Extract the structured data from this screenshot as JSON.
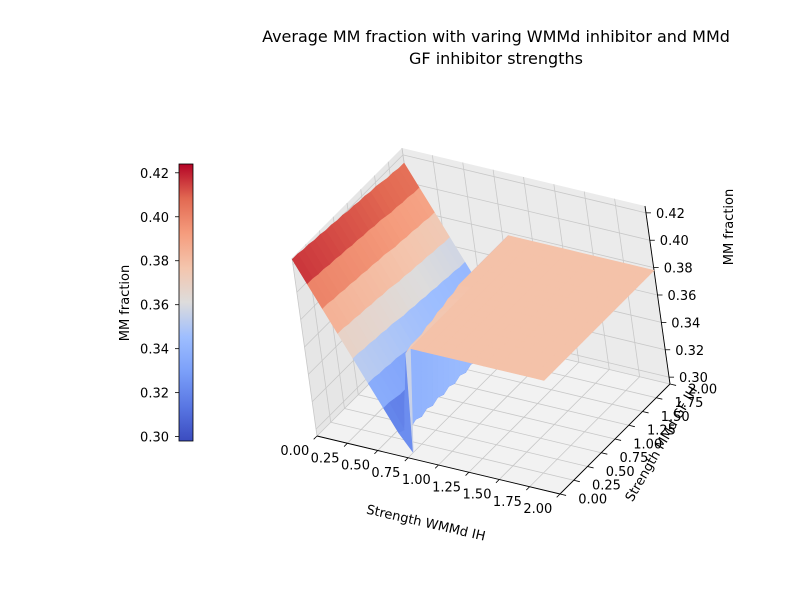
{
  "chart_data": {
    "type": "surface3d",
    "title_line1": "Average MM fraction with varing WMMd inhibitor and MMd",
    "title_line2": "GF inhibitor strengths",
    "xlabel": "Strength WMMd IH",
    "ylabel": "Strength MMd GF IH",
    "zlabel": "MM fraction",
    "colorbar_label": "MM fraction",
    "colormap": "coolwarm",
    "x_ticks": [
      "0.00",
      "0.25",
      "0.50",
      "0.75",
      "1.00",
      "1.25",
      "1.50",
      "1.75",
      "2.00"
    ],
    "y_ticks": [
      "0.00",
      "0.25",
      "0.50",
      "0.75",
      "1.00",
      "1.25",
      "1.50",
      "1.75",
      "2.00"
    ],
    "z_ticks": [
      "0.30",
      "0.32",
      "0.34",
      "0.36",
      "0.38",
      "0.40",
      "0.42"
    ],
    "colorbar_ticks": [
      "0.30",
      "0.32",
      "0.34",
      "0.36",
      "0.38",
      "0.40",
      "0.42"
    ],
    "xlim": [
      0,
      2
    ],
    "ylim": [
      0,
      2
    ],
    "zlim": [
      0.295,
      0.425
    ],
    "colorbar_range": [
      0.298,
      0.424
    ],
    "grid": true,
    "surface": {
      "x": [
        0.0,
        0.1,
        0.2,
        0.3,
        0.4,
        0.5,
        0.6,
        0.7,
        0.8,
        0.9,
        1.0,
        1.1,
        1.2,
        1.3,
        1.4,
        1.5,
        1.6,
        1.7,
        1.8,
        1.9,
        2.0
      ],
      "y": [
        0.0,
        0.1,
        0.2,
        0.3,
        0.4,
        0.5,
        0.6,
        0.7,
        0.8,
        0.9,
        1.0,
        1.1,
        1.2,
        1.3,
        1.4,
        1.5,
        1.6,
        1.7,
        1.8,
        1.9,
        2.0
      ],
      "z": [
        [
          0.424,
          0.408,
          0.392,
          0.376,
          0.36,
          0.344,
          0.328,
          0.312,
          0.3,
          0.378,
          0.378,
          0.378,
          0.378,
          0.378,
          0.378,
          0.378,
          0.378,
          0.378,
          0.378,
          0.378,
          0.378
        ],
        [
          0.424,
          0.408,
          0.392,
          0.376,
          0.36,
          0.344,
          0.328,
          0.31,
          0.368,
          0.378,
          0.378,
          0.378,
          0.378,
          0.378,
          0.378,
          0.378,
          0.378,
          0.378,
          0.378,
          0.378,
          0.378
        ],
        [
          0.423,
          0.407,
          0.391,
          0.375,
          0.359,
          0.343,
          0.327,
          0.308,
          0.37,
          0.378,
          0.378,
          0.378,
          0.378,
          0.378,
          0.378,
          0.378,
          0.378,
          0.378,
          0.378,
          0.378,
          0.378
        ],
        [
          0.423,
          0.407,
          0.391,
          0.375,
          0.359,
          0.343,
          0.326,
          0.31,
          0.37,
          0.378,
          0.378,
          0.378,
          0.378,
          0.378,
          0.378,
          0.378,
          0.378,
          0.378,
          0.378,
          0.378,
          0.378
        ],
        [
          0.422,
          0.406,
          0.39,
          0.374,
          0.358,
          0.342,
          0.326,
          0.308,
          0.37,
          0.378,
          0.378,
          0.378,
          0.378,
          0.378,
          0.378,
          0.378,
          0.378,
          0.378,
          0.378,
          0.378,
          0.378
        ],
        [
          0.422,
          0.406,
          0.39,
          0.374,
          0.358,
          0.342,
          0.325,
          0.31,
          0.372,
          0.378,
          0.378,
          0.378,
          0.378,
          0.378,
          0.378,
          0.378,
          0.378,
          0.378,
          0.378,
          0.378,
          0.378
        ],
        [
          0.421,
          0.405,
          0.389,
          0.373,
          0.357,
          0.341,
          0.325,
          0.308,
          0.372,
          0.378,
          0.378,
          0.378,
          0.378,
          0.378,
          0.378,
          0.378,
          0.378,
          0.378,
          0.378,
          0.378,
          0.378
        ],
        [
          0.421,
          0.405,
          0.389,
          0.373,
          0.357,
          0.34,
          0.324,
          0.31,
          0.374,
          0.378,
          0.378,
          0.378,
          0.378,
          0.378,
          0.378,
          0.378,
          0.378,
          0.378,
          0.378,
          0.378,
          0.378
        ],
        [
          0.42,
          0.404,
          0.388,
          0.372,
          0.356,
          0.34,
          0.324,
          0.308,
          0.374,
          0.378,
          0.378,
          0.378,
          0.378,
          0.378,
          0.378,
          0.378,
          0.378,
          0.378,
          0.378,
          0.378,
          0.378
        ],
        [
          0.42,
          0.404,
          0.388,
          0.372,
          0.355,
          0.339,
          0.323,
          0.31,
          0.376,
          0.378,
          0.378,
          0.378,
          0.378,
          0.378,
          0.378,
          0.378,
          0.378,
          0.378,
          0.378,
          0.378,
          0.378
        ],
        [
          0.419,
          0.403,
          0.387,
          0.371,
          0.355,
          0.339,
          0.323,
          0.308,
          0.376,
          0.378,
          0.378,
          0.378,
          0.378,
          0.378,
          0.378,
          0.378,
          0.378,
          0.378,
          0.378,
          0.378,
          0.378
        ],
        [
          0.419,
          0.403,
          0.387,
          0.37,
          0.354,
          0.338,
          0.322,
          0.31,
          0.378,
          0.378,
          0.378,
          0.378,
          0.378,
          0.378,
          0.378,
          0.378,
          0.378,
          0.378,
          0.378,
          0.378,
          0.378
        ],
        [
          0.418,
          0.402,
          0.386,
          0.37,
          0.354,
          0.338,
          0.322,
          0.308,
          0.378,
          0.378,
          0.378,
          0.378,
          0.378,
          0.378,
          0.378,
          0.378,
          0.378,
          0.378,
          0.378,
          0.378,
          0.378
        ],
        [
          0.418,
          0.402,
          0.385,
          0.369,
          0.353,
          0.337,
          0.321,
          0.31,
          0.378,
          0.378,
          0.378,
          0.378,
          0.378,
          0.378,
          0.378,
          0.378,
          0.378,
          0.378,
          0.378,
          0.378,
          0.378
        ],
        [
          0.417,
          0.401,
          0.385,
          0.369,
          0.353,
          0.337,
          0.321,
          0.308,
          0.378,
          0.378,
          0.378,
          0.378,
          0.378,
          0.378,
          0.378,
          0.378,
          0.378,
          0.378,
          0.378,
          0.378,
          0.378
        ],
        [
          0.417,
          0.4,
          0.384,
          0.368,
          0.352,
          0.336,
          0.32,
          0.31,
          0.378,
          0.378,
          0.378,
          0.378,
          0.378,
          0.378,
          0.378,
          0.378,
          0.378,
          0.378,
          0.378,
          0.378,
          0.378
        ],
        [
          0.416,
          0.4,
          0.384,
          0.368,
          0.352,
          0.336,
          0.32,
          0.308,
          0.378,
          0.378,
          0.378,
          0.378,
          0.378,
          0.378,
          0.378,
          0.378,
          0.378,
          0.378,
          0.378,
          0.378,
          0.378
        ],
        [
          0.415,
          0.399,
          0.383,
          0.367,
          0.351,
          0.335,
          0.319,
          0.31,
          0.378,
          0.378,
          0.378,
          0.378,
          0.378,
          0.378,
          0.378,
          0.378,
          0.378,
          0.378,
          0.378,
          0.378,
          0.378
        ],
        [
          0.415,
          0.399,
          0.383,
          0.367,
          0.351,
          0.335,
          0.319,
          0.308,
          0.378,
          0.378,
          0.378,
          0.378,
          0.378,
          0.378,
          0.378,
          0.378,
          0.378,
          0.378,
          0.378,
          0.378,
          0.378
        ],
        [
          0.414,
          0.398,
          0.382,
          0.366,
          0.35,
          0.334,
          0.318,
          0.31,
          0.378,
          0.378,
          0.378,
          0.378,
          0.378,
          0.378,
          0.378,
          0.378,
          0.378,
          0.378,
          0.378,
          0.378,
          0.378
        ],
        [
          0.414,
          0.398,
          0.382,
          0.366,
          0.35,
          0.334,
          0.318,
          0.308,
          0.378,
          0.378,
          0.378,
          0.378,
          0.378,
          0.378,
          0.378,
          0.378,
          0.378,
          0.378,
          0.378,
          0.378,
          0.378
        ]
      ]
    }
  }
}
